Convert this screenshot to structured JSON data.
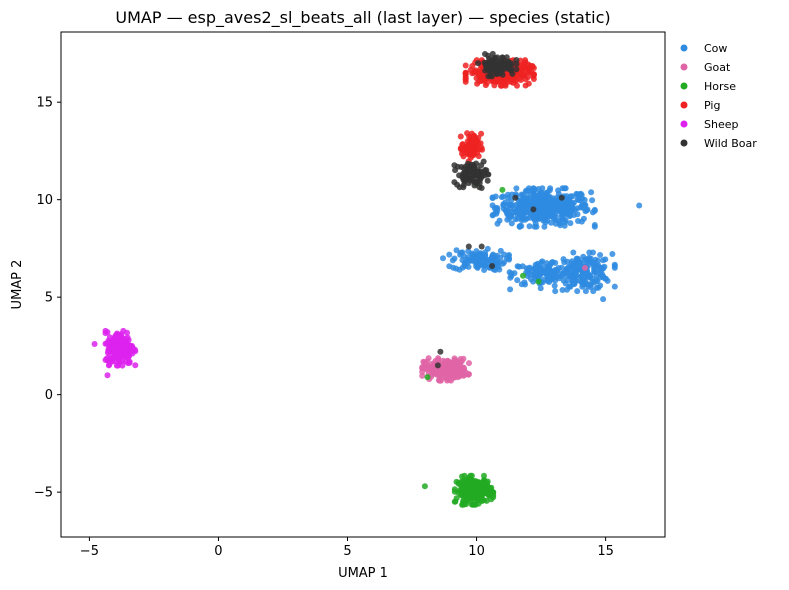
{
  "chart_data": {
    "type": "scatter",
    "title": "UMAP — esp_aves2_sl_beats_all (last layer) — species (static)",
    "xlabel": "UMAP 1",
    "ylabel": "UMAP 2",
    "xlim": [
      -6.1,
      17.3
    ],
    "ylim": [
      -7.3,
      18.6
    ],
    "xticks": [
      -5,
      0,
      5,
      10,
      15
    ],
    "yticks": [
      -5,
      0,
      5,
      10,
      15
    ],
    "grid": false,
    "legend_position": "outside-right",
    "series": [
      {
        "name": "Cow",
        "color": "#2E8BE0",
        "clusters": [
          {
            "cx": 12.6,
            "cy": 9.6,
            "sx": 1.2,
            "sy": 0.6,
            "n": 420
          },
          {
            "cx": 14.2,
            "cy": 6.3,
            "sx": 0.7,
            "sy": 0.6,
            "n": 160
          },
          {
            "cx": 12.6,
            "cy": 6.2,
            "sx": 0.8,
            "sy": 0.45,
            "n": 120
          },
          {
            "cx": 10.1,
            "cy": 6.9,
            "sx": 0.7,
            "sy": 0.35,
            "n": 110
          }
        ],
        "points": [
          [
            16.3,
            9.7
          ],
          [
            8.7,
            7.0
          ],
          [
            11.3,
            5.4
          ],
          [
            14.9,
            4.9
          ]
        ]
      },
      {
        "name": "Goat",
        "color": "#E065A6",
        "clusters": [
          {
            "cx": 8.8,
            "cy": 1.3,
            "sx": 0.55,
            "sy": 0.35,
            "n": 230
          }
        ],
        "points": [
          [
            14.2,
            6.5
          ]
        ]
      },
      {
        "name": "Horse",
        "color": "#22AA22",
        "clusters": [
          {
            "cx": 9.9,
            "cy": -4.9,
            "sx": 0.45,
            "sy": 0.45,
            "n": 200
          }
        ],
        "points": [
          [
            8.0,
            -4.7
          ],
          [
            8.1,
            0.9
          ],
          [
            11.8,
            6.1
          ],
          [
            12.4,
            5.8
          ],
          [
            11.0,
            10.5
          ],
          [
            10.0,
            10.8
          ]
        ]
      },
      {
        "name": "Pig",
        "color": "#EE2222",
        "clusters": [
          {
            "cx": 10.9,
            "cy": 16.5,
            "sx": 0.8,
            "sy": 0.4,
            "n": 300
          },
          {
            "cx": 9.8,
            "cy": 12.7,
            "sx": 0.25,
            "sy": 0.45,
            "n": 80
          }
        ],
        "points": []
      },
      {
        "name": "Sheep",
        "color": "#DD22EE",
        "clusters": [
          {
            "cx": -3.8,
            "cy": 2.4,
            "sx": 0.35,
            "sy": 0.55,
            "n": 220
          }
        ],
        "points": [
          [
            -4.8,
            2.6
          ],
          [
            -4.3,
            1.0
          ]
        ]
      },
      {
        "name": "Wild Boar",
        "color": "#333333",
        "clusters": [
          {
            "cx": 10.8,
            "cy": 16.9,
            "sx": 0.45,
            "sy": 0.35,
            "n": 100
          },
          {
            "cx": 9.8,
            "cy": 11.3,
            "sx": 0.4,
            "sy": 0.4,
            "n": 80
          }
        ],
        "points": [
          [
            8.6,
            2.2
          ],
          [
            8.5,
            1.5
          ],
          [
            9.7,
            7.6
          ],
          [
            10.2,
            7.6
          ],
          [
            10.6,
            6.6
          ],
          [
            11.5,
            10.1
          ],
          [
            12.2,
            9.5
          ],
          [
            13.3,
            10.1
          ],
          [
            10.2,
            10.6
          ]
        ]
      }
    ]
  }
}
